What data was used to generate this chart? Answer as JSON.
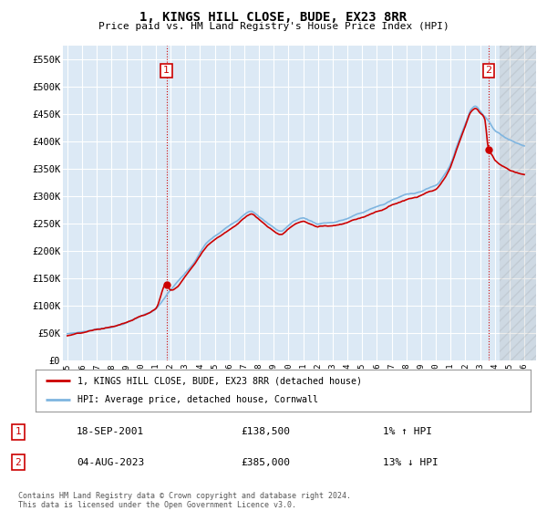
{
  "title": "1, KINGS HILL CLOSE, BUDE, EX23 8RR",
  "subtitle": "Price paid vs. HM Land Registry's House Price Index (HPI)",
  "ylim": [
    0,
    575000
  ],
  "yticks": [
    0,
    50000,
    100000,
    150000,
    200000,
    250000,
    300000,
    350000,
    400000,
    450000,
    500000,
    550000
  ],
  "ytick_labels": [
    "£0",
    "£50K",
    "£100K",
    "£150K",
    "£200K",
    "£250K",
    "£300K",
    "£350K",
    "£400K",
    "£450K",
    "£500K",
    "£550K"
  ],
  "background_color": "#ffffff",
  "plot_bg_color": "#dce9f5",
  "grid_color": "#ffffff",
  "hpi_line_color": "#7fb5e0",
  "price_line_color": "#cc0000",
  "transaction1_year": 2001.72,
  "transaction1_price": 138500,
  "transaction2_year": 2023.59,
  "transaction2_price": 385000,
  "transaction1_date": "18-SEP-2001",
  "transaction2_date": "04-AUG-2023",
  "transaction1_hpi": "1% ↑ HPI",
  "transaction2_hpi": "13% ↓ HPI",
  "legend_entry1": "1, KINGS HILL CLOSE, BUDE, EX23 8RR (detached house)",
  "legend_entry2": "HPI: Average price, detached house, Cornwall",
  "footer1": "Contains HM Land Registry data © Crown copyright and database right 2024.",
  "footer2": "This data is licensed under the Open Government Licence v3.0.",
  "xlim_left": 1994.7,
  "xlim_right": 2026.8,
  "hatched_start": 2024.3
}
